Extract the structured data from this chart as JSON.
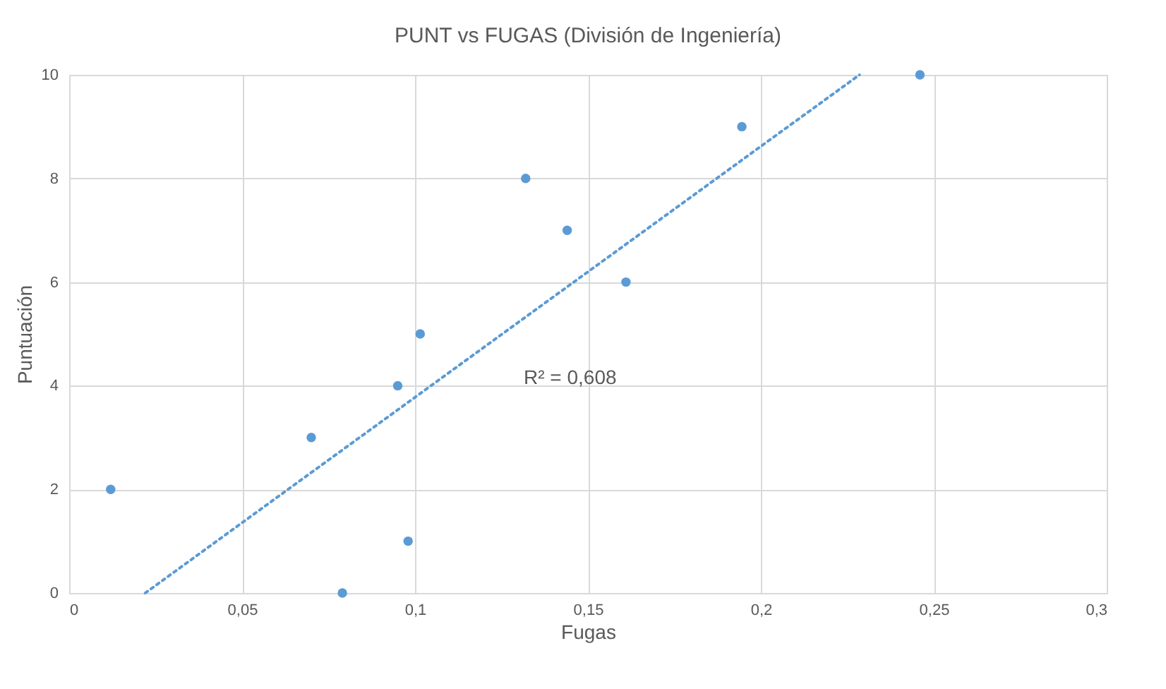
{
  "chart_data": {
    "type": "scatter",
    "title": "PUNT vs FUGAS (División de Ingeniería)",
    "xlabel": "Fugas",
    "ylabel": "Puntuación",
    "series": [
      {
        "color": "#5b9bd5",
        "marker": "circle",
        "x": [
          0.012,
          0.07,
          0.079,
          0.095,
          0.098,
          0.1015,
          0.132,
          0.144,
          0.161,
          0.1945,
          0.246
        ],
        "values": [
          2,
          3,
          0,
          4,
          1,
          5,
          8,
          7,
          6,
          9,
          10
        ]
      },
      {
        "type": "line",
        "color": "#5b9bd5",
        "line_style": "dotted",
        "marker": "none",
        "x": [
          0.022,
          0.2285
        ],
        "values": [
          0,
          10
        ]
      }
    ],
    "grid": true,
    "xlim": [
      0,
      0.3
    ],
    "xticks": [
      0,
      {
        "value": 0.05,
        "label": "0,05"
      },
      {
        "value": 0.1,
        "label": "0,1"
      },
      {
        "value": 0.15,
        "label": "0,15"
      },
      {
        "value": 0.2,
        "label": "0,2"
      },
      {
        "value": 0.25,
        "label": "0,25"
      },
      {
        "value": 0.3,
        "label": "0,3"
      }
    ],
    "ylim": [
      0,
      10
    ],
    "yticks": [
      0,
      2,
      4,
      6,
      8,
      10
    ],
    "annotations": [
      "R² = 0,608"
    ]
  }
}
